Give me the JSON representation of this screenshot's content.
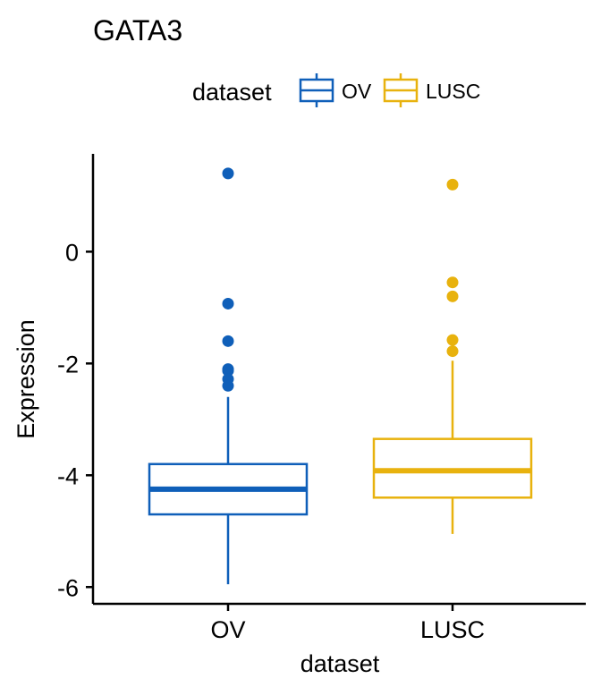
{
  "chart_data": {
    "type": "box",
    "title": "GATA3",
    "xlabel": "dataset",
    "ylabel": "Expression",
    "categories": [
      "OV",
      "LUSC"
    ],
    "ylim": [
      -6.3,
      1.75
    ],
    "yticks": [
      -6,
      -4,
      -2,
      0
    ],
    "grid": false,
    "legend": {
      "title": "dataset",
      "position": "top",
      "entries": [
        {
          "label": "OV",
          "color": "#0F5FB9"
        },
        {
          "label": "LUSC",
          "color": "#E8B20E"
        }
      ]
    },
    "series": [
      {
        "category": "OV",
        "color": "#0F5FB9",
        "min": -5.95,
        "q1": -4.7,
        "median": -4.25,
        "q3": -3.8,
        "max": -2.6,
        "outliers": [
          1.4,
          -0.93,
          -1.6,
          -2.1,
          -2.13,
          -2.28,
          -2.4
        ]
      },
      {
        "category": "LUSC",
        "color": "#E8B20E",
        "min": -5.05,
        "q1": -4.4,
        "median": -3.92,
        "q3": -3.35,
        "max": -1.95,
        "outliers": [
          1.2,
          -0.55,
          -0.8,
          -1.58,
          -1.78
        ]
      }
    ]
  }
}
